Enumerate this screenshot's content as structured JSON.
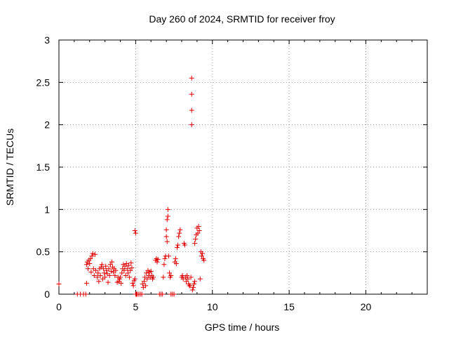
{
  "chart_data": {
    "type": "scatter",
    "title": "Day 260 of 2024, SRMTID for receiver froy",
    "xlabel": "GPS time / hours",
    "ylabel": "SRMTID / TECUs",
    "xlim": [
      0,
      24
    ],
    "ylim": [
      0,
      3
    ],
    "xticks": [
      0,
      5,
      10,
      15,
      20
    ],
    "xtick_labels": [
      "0",
      "5",
      "10",
      "15",
      "20"
    ],
    "yticks": [
      0,
      0.5,
      1,
      1.5,
      2,
      2.5,
      3
    ],
    "ytick_labels": [
      "0",
      "0.5",
      "1",
      "1.5",
      "2",
      "2.5",
      "3"
    ],
    "grid": true,
    "marker": "+",
    "marker_color": "#e00000",
    "series": [
      {
        "name": "SRMTID",
        "points": [
          [
            0.0,
            0.12
          ],
          [
            1.2,
            0.0
          ],
          [
            1.4,
            0.0
          ],
          [
            1.6,
            0.0
          ],
          [
            1.75,
            0.0
          ],
          [
            1.8,
            0.13
          ],
          [
            1.8,
            0.35
          ],
          [
            1.85,
            0.38
          ],
          [
            1.9,
            0.3
          ],
          [
            1.95,
            0.4
          ],
          [
            2.0,
            0.36
          ],
          [
            2.05,
            0.42
          ],
          [
            2.1,
            0.26
          ],
          [
            2.15,
            0.45
          ],
          [
            2.2,
            0.48
          ],
          [
            2.25,
            0.3
          ],
          [
            2.3,
            0.22
          ],
          [
            2.35,
            0.47
          ],
          [
            2.4,
            0.28
          ],
          [
            2.5,
            0.2
          ],
          [
            2.55,
            0.25
          ],
          [
            2.6,
            0.15
          ],
          [
            2.65,
            0.3
          ],
          [
            2.7,
            0.22
          ],
          [
            2.75,
            0.32
          ],
          [
            2.8,
            0.35
          ],
          [
            2.85,
            0.18
          ],
          [
            2.9,
            0.3
          ],
          [
            2.95,
            0.25
          ],
          [
            3.0,
            0.2
          ],
          [
            3.05,
            0.33
          ],
          [
            3.1,
            0.28
          ],
          [
            3.15,
            0.24
          ],
          [
            3.2,
            0.14
          ],
          [
            3.25,
            0.3
          ],
          [
            3.3,
            0.22
          ],
          [
            3.35,
            0.35
          ],
          [
            3.4,
            0.27
          ],
          [
            3.45,
            0.38
          ],
          [
            3.5,
            0.32
          ],
          [
            3.55,
            0.26
          ],
          [
            3.6,
            0.3
          ],
          [
            3.65,
            0.22
          ],
          [
            3.7,
            0.28
          ],
          [
            3.8,
            0.14
          ],
          [
            3.85,
            0.2
          ],
          [
            3.9,
            0.15
          ],
          [
            3.95,
            0.18
          ],
          [
            4.0,
            0.2
          ],
          [
            4.05,
            0.13
          ],
          [
            4.1,
            0.25
          ],
          [
            4.15,
            0.3
          ],
          [
            4.2,
            0.35
          ],
          [
            4.25,
            0.28
          ],
          [
            4.3,
            0.33
          ],
          [
            4.35,
            0.22
          ],
          [
            4.4,
            0.36
          ],
          [
            4.45,
            0.3
          ],
          [
            4.5,
            0.25
          ],
          [
            4.55,
            0.34
          ],
          [
            4.6,
            0.2
          ],
          [
            4.65,
            0.28
          ],
          [
            4.7,
            0.37
          ],
          [
            4.75,
            0.31
          ],
          [
            4.8,
            0.13
          ],
          [
            4.85,
            0.1
          ],
          [
            4.9,
            0.16
          ],
          [
            4.95,
            0.18
          ],
          [
            4.95,
            0.75
          ],
          [
            5.0,
            0.72
          ],
          [
            5.0,
            0.0
          ],
          [
            5.05,
            0.0
          ],
          [
            5.1,
            0.0
          ],
          [
            5.2,
            0.0
          ],
          [
            5.3,
            0.0
          ],
          [
            5.4,
            0.0
          ],
          [
            5.45,
            0.12
          ],
          [
            5.5,
            0.08
          ],
          [
            5.55,
            0.15
          ],
          [
            5.6,
            0.2
          ],
          [
            5.65,
            0.1
          ],
          [
            5.7,
            0.25
          ],
          [
            5.75,
            0.18
          ],
          [
            5.8,
            0.28
          ],
          [
            5.85,
            0.22
          ],
          [
            5.9,
            0.26
          ],
          [
            5.95,
            0.2
          ],
          [
            6.0,
            0.27
          ],
          [
            6.05,
            0.22
          ],
          [
            6.1,
            0.18
          ],
          [
            6.15,
            0.2
          ],
          [
            6.3,
            0.4
          ],
          [
            6.35,
            0.42
          ],
          [
            6.4,
            0.38
          ],
          [
            6.45,
            0.41
          ],
          [
            6.55,
            0.0
          ],
          [
            6.65,
            0.0
          ],
          [
            6.75,
            0.0
          ],
          [
            6.8,
            0.2
          ],
          [
            6.85,
            0.35
          ],
          [
            6.9,
            0.42
          ],
          [
            6.95,
            0.45
          ],
          [
            7.0,
            0.68
          ],
          [
            7.0,
            0.76
          ],
          [
            7.05,
            0.62
          ],
          [
            7.05,
            0.88
          ],
          [
            7.1,
            0.92
          ],
          [
            7.1,
            1.0
          ],
          [
            7.15,
            0.45
          ],
          [
            7.2,
            0.25
          ],
          [
            7.25,
            0.2
          ],
          [
            7.3,
            0.22
          ],
          [
            7.3,
            0.0
          ],
          [
            7.4,
            0.0
          ],
          [
            7.5,
            0.0
          ],
          [
            7.55,
            0.38
          ],
          [
            7.6,
            0.42
          ],
          [
            7.65,
            0.36
          ],
          [
            7.7,
            0.55
          ],
          [
            7.75,
            0.58
          ],
          [
            7.8,
            0.68
          ],
          [
            7.85,
            0.72
          ],
          [
            7.9,
            0.76
          ],
          [
            8.0,
            0.2
          ],
          [
            8.05,
            0.22
          ],
          [
            8.1,
            0.18
          ],
          [
            8.15,
            0.6
          ],
          [
            8.2,
            0.58
          ],
          [
            8.25,
            0.2
          ],
          [
            8.3,
            0.15
          ],
          [
            8.35,
            0.22
          ],
          [
            8.4,
            0.18
          ],
          [
            8.45,
            0.12
          ],
          [
            8.5,
            0.1
          ],
          [
            8.55,
            0.1
          ],
          [
            8.6,
            0.2
          ],
          [
            8.65,
            2.0
          ],
          [
            8.65,
            2.17
          ],
          [
            8.65,
            2.36
          ],
          [
            8.65,
            2.55
          ],
          [
            8.7,
            0.05
          ],
          [
            8.75,
            0.08
          ],
          [
            8.8,
            0.12
          ],
          [
            8.85,
            0.15
          ],
          [
            8.85,
            0.6
          ],
          [
            8.9,
            0.65
          ],
          [
            8.95,
            0.7
          ],
          [
            9.0,
            0.78
          ],
          [
            9.05,
            0.72
          ],
          [
            9.1,
            0.8
          ],
          [
            9.15,
            0.75
          ],
          [
            9.2,
            0.18
          ],
          [
            9.25,
            0.5
          ],
          [
            9.3,
            0.45
          ],
          [
            9.35,
            0.48
          ],
          [
            9.4,
            0.42
          ],
          [
            9.45,
            0.4
          ]
        ]
      }
    ]
  }
}
